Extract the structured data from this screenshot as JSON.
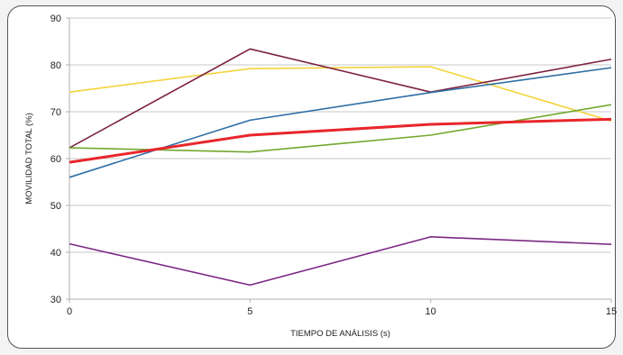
{
  "chart_data": {
    "type": "line",
    "title": "",
    "xlabel": "TIEMPO DE ANÁLISIS (s)",
    "ylabel": "MOVILIDAD TOTAL (%)",
    "x": [
      0,
      5,
      10,
      15
    ],
    "xlim": [
      0,
      15
    ],
    "ylim": [
      30,
      90
    ],
    "xticks": [
      "0",
      "5",
      "10",
      "15"
    ],
    "yticks": [
      "30",
      "40",
      "50",
      "60",
      "70",
      "80",
      "90"
    ],
    "grid": "horizontal",
    "legend": "none",
    "series": [
      {
        "color": "#f5d33d",
        "width": 1.6,
        "values": [
          74.2,
          79.2,
          79.6,
          68.0
        ]
      },
      {
        "color": "#7d2340",
        "width": 1.6,
        "values": [
          62.3,
          83.4,
          74.2,
          81.2
        ]
      },
      {
        "color": "#2f6fa6",
        "width": 1.6,
        "values": [
          56.0,
          68.2,
          74.1,
          79.4
        ]
      },
      {
        "color": "#72a82e",
        "width": 1.6,
        "values": [
          62.3,
          61.4,
          65.0,
          71.5
        ]
      },
      {
        "color": "#e8262b",
        "width": 3.0,
        "values": [
          59.2,
          65.0,
          67.3,
          68.4
        ]
      },
      {
        "color": "#7b2883",
        "width": 1.6,
        "values": [
          41.8,
          33.0,
          43.3,
          41.7
        ]
      }
    ]
  }
}
